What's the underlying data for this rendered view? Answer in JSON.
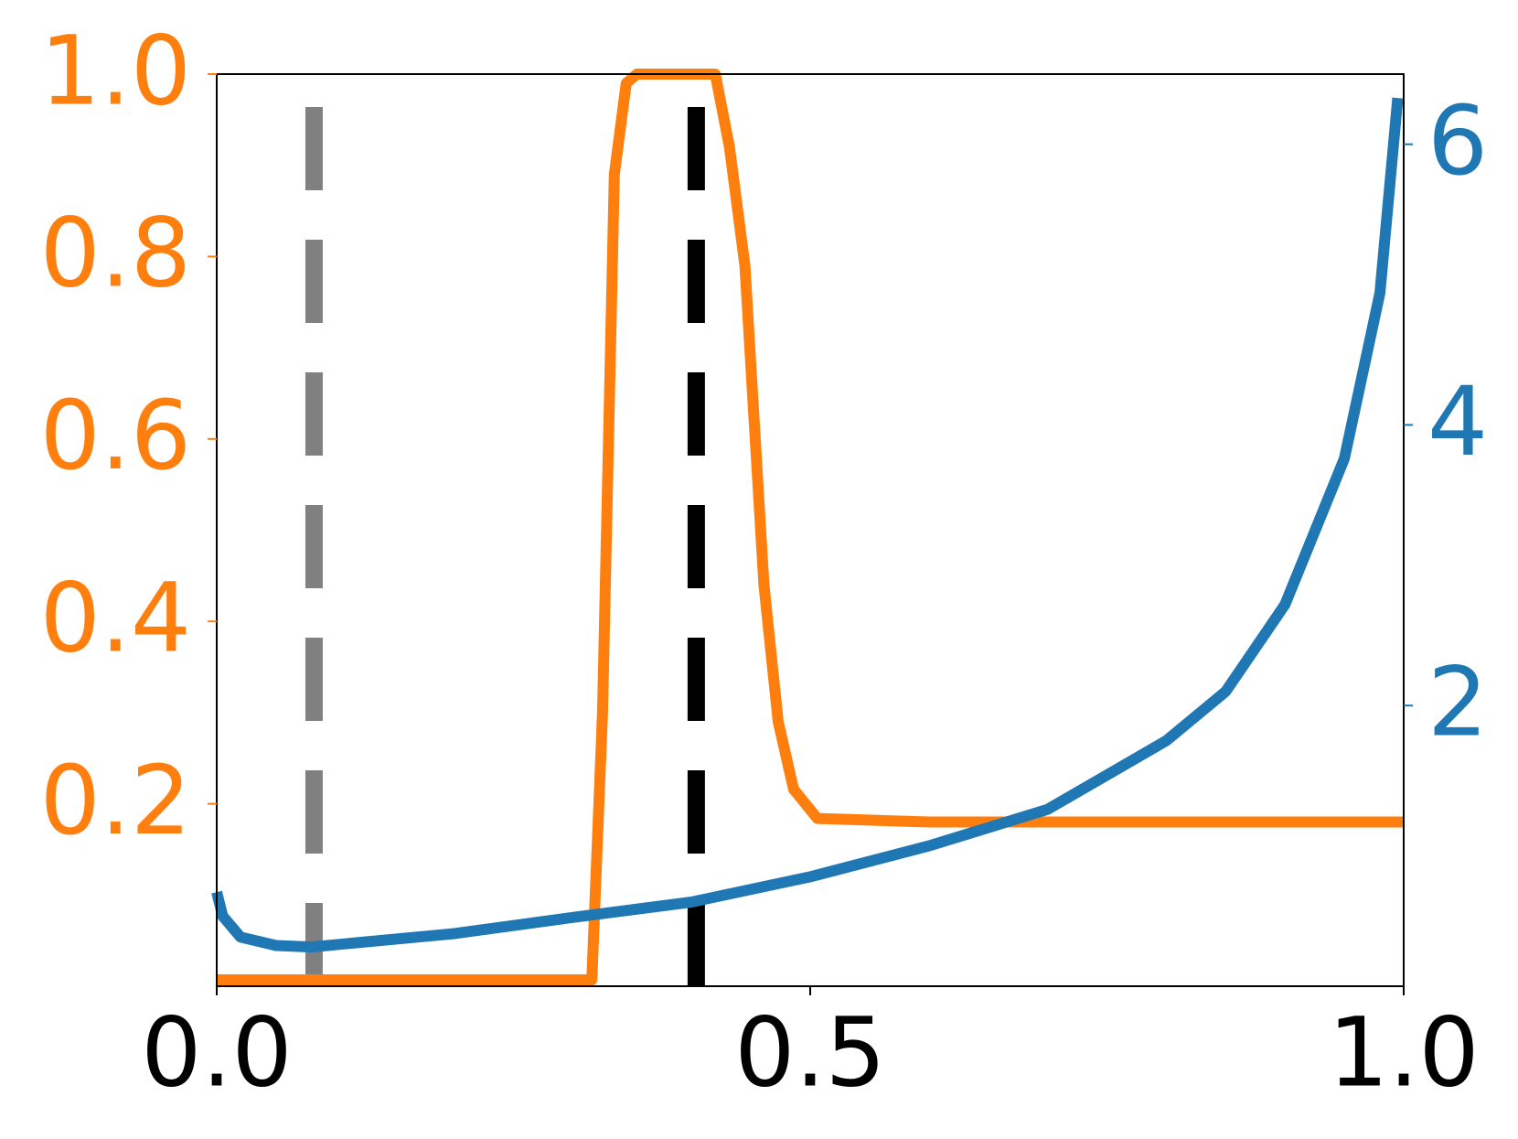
{
  "chart_data": {
    "type": "line",
    "xlim": [
      0,
      1
    ],
    "xticks": [
      {
        "value": 0,
        "label": "0.0"
      },
      {
        "value": 0.5,
        "label": "0.5"
      },
      {
        "value": 1,
        "label": "1.0"
      }
    ],
    "ylim": [
      0,
      1
    ],
    "yticks": [
      0.2,
      0.4,
      0.6,
      0.8,
      {
        "value": 1,
        "label": "1.0"
      }
    ],
    "y2lim": [
      0,
      6.5
    ],
    "y2ticks": [
      2,
      4,
      6
    ],
    "vlines": [
      {
        "x": 0.082,
        "color": "#808080"
      },
      {
        "x": 0.404,
        "color": "#000000"
      }
    ],
    "series": [
      {
        "color": "#ff7f0e",
        "axis": "y",
        "x": [
          0,
          0.1,
          0.2,
          0.316,
          0.325,
          0.335,
          0.345,
          0.354,
          0.42,
          0.432,
          0.445,
          0.461,
          0.473,
          0.486,
          0.506,
          0.6,
          0.8,
          1
        ],
        "values": [
          0.007,
          0.007,
          0.007,
          0.007,
          0.3,
          0.89,
          0.99,
          1,
          1,
          0.92,
          0.79,
          0.44,
          0.29,
          0.216,
          0.184,
          0.18,
          0.18,
          0.18
        ]
      },
      {
        "color": "#1f77b4",
        "axis": "y2",
        "x": [
          0,
          0.005,
          0.02,
          0.05,
          0.08,
          0.2,
          0.3,
          0.4,
          0.5,
          0.6,
          0.7,
          0.8,
          0.85,
          0.9,
          0.95,
          0.98,
          0.995
        ],
        "values": [
          0.67,
          0.5,
          0.35,
          0.29,
          0.28,
          0.375,
          0.49,
          0.6,
          0.78,
          1.0,
          1.26,
          1.75,
          2.1,
          2.72,
          3.76,
          4.94,
          6.33
        ]
      }
    ]
  }
}
